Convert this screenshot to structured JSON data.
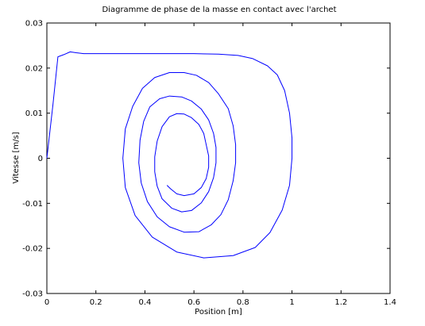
{
  "chart_data": {
    "type": "line",
    "title": "Diagramme de phase de la masse en contact avec l'archet",
    "xlabel": "Position [m]",
    "ylabel": "Vitesse [m/s]",
    "xlim": [
      0,
      1.4
    ],
    "ylim": [
      -0.03,
      0.03
    ],
    "xticks": [
      0,
      0.2,
      0.4,
      0.6,
      0.8,
      1,
      1.2,
      1.4
    ],
    "xtick_labels": [
      "0",
      "0.2",
      "0.4",
      "0.6",
      "0.8",
      "1",
      "1.2",
      "1.4"
    ],
    "yticks": [
      -0.03,
      -0.02,
      -0.01,
      0,
      0.01,
      0.02,
      0.03
    ],
    "ytick_labels": [
      "-0.03",
      "-0.02",
      "-0.01",
      "0",
      "0.01",
      "0.02",
      "0.03"
    ],
    "grid": false,
    "legend": "none",
    "series": [
      {
        "color": "#0000ff",
        "points": [
          [
            0.0,
            0.0
          ],
          [
            0.025,
            0.012
          ],
          [
            0.045,
            0.0225
          ],
          [
            0.07,
            0.023
          ],
          [
            0.095,
            0.0236
          ],
          [
            0.12,
            0.0234
          ],
          [
            0.15,
            0.0232
          ],
          [
            0.3,
            0.0232
          ],
          [
            0.45,
            0.0232
          ],
          [
            0.6,
            0.0232
          ],
          [
            0.7,
            0.0231
          ],
          [
            0.78,
            0.0228
          ],
          [
            0.84,
            0.0221
          ],
          [
            0.9,
            0.0205
          ],
          [
            0.94,
            0.0185
          ],
          [
            0.97,
            0.015
          ],
          [
            0.99,
            0.01
          ],
          [
            1.0,
            0.0045
          ],
          [
            1.0,
            0.0
          ],
          [
            0.99,
            -0.006
          ],
          [
            0.96,
            -0.0115
          ],
          [
            0.91,
            -0.0165
          ],
          [
            0.85,
            -0.0198
          ],
          [
            0.76,
            -0.0216
          ],
          [
            0.64,
            -0.0221
          ],
          [
            0.53,
            -0.0208
          ],
          [
            0.43,
            -0.0175
          ],
          [
            0.36,
            -0.0127
          ],
          [
            0.32,
            -0.0065
          ],
          [
            0.31,
            0.0
          ],
          [
            0.32,
            0.0065
          ],
          [
            0.35,
            0.0115
          ],
          [
            0.39,
            0.0155
          ],
          [
            0.44,
            0.0179
          ],
          [
            0.5,
            0.019
          ],
          [
            0.56,
            0.019
          ],
          [
            0.61,
            0.0184
          ],
          [
            0.66,
            0.0168
          ],
          [
            0.7,
            0.0143
          ],
          [
            0.74,
            0.011
          ],
          [
            0.76,
            0.0072
          ],
          [
            0.77,
            0.003
          ],
          [
            0.77,
            -0.001
          ],
          [
            0.76,
            -0.005
          ],
          [
            0.74,
            -0.0092
          ],
          [
            0.71,
            -0.0125
          ],
          [
            0.67,
            -0.0148
          ],
          [
            0.62,
            -0.0163
          ],
          [
            0.56,
            -0.0164
          ],
          [
            0.5,
            -0.0152
          ],
          [
            0.45,
            -0.013
          ],
          [
            0.41,
            -0.0096
          ],
          [
            0.385,
            -0.0055
          ],
          [
            0.375,
            -0.001
          ],
          [
            0.38,
            0.004
          ],
          [
            0.395,
            0.0082
          ],
          [
            0.42,
            0.0114
          ],
          [
            0.46,
            0.0132
          ],
          [
            0.5,
            0.0138
          ],
          [
            0.55,
            0.0136
          ],
          [
            0.59,
            0.0127
          ],
          [
            0.63,
            0.0109
          ],
          [
            0.66,
            0.0085
          ],
          [
            0.68,
            0.0055
          ],
          [
            0.69,
            0.0024
          ],
          [
            0.69,
            -0.001
          ],
          [
            0.68,
            -0.0043
          ],
          [
            0.66,
            -0.0074
          ],
          [
            0.63,
            -0.0099
          ],
          [
            0.59,
            -0.0116
          ],
          [
            0.55,
            -0.0119
          ],
          [
            0.51,
            -0.0111
          ],
          [
            0.47,
            -0.009
          ],
          [
            0.45,
            -0.0062
          ],
          [
            0.44,
            -0.003
          ],
          [
            0.44,
            0.0003
          ],
          [
            0.45,
            0.0038
          ],
          [
            0.47,
            0.007
          ],
          [
            0.5,
            0.0092
          ],
          [
            0.53,
            0.0099
          ],
          [
            0.56,
            0.0098
          ],
          [
            0.59,
            0.009
          ],
          [
            0.62,
            0.0075
          ],
          [
            0.64,
            0.0055
          ],
          [
            0.65,
            0.003
          ],
          [
            0.66,
            0.0005
          ],
          [
            0.66,
            -0.002
          ],
          [
            0.65,
            -0.0045
          ],
          [
            0.63,
            -0.0065
          ],
          [
            0.6,
            -0.0079
          ],
          [
            0.56,
            -0.0083
          ],
          [
            0.53,
            -0.0079
          ],
          [
            0.505,
            -0.0068
          ],
          [
            0.49,
            -0.006
          ]
        ]
      }
    ]
  }
}
